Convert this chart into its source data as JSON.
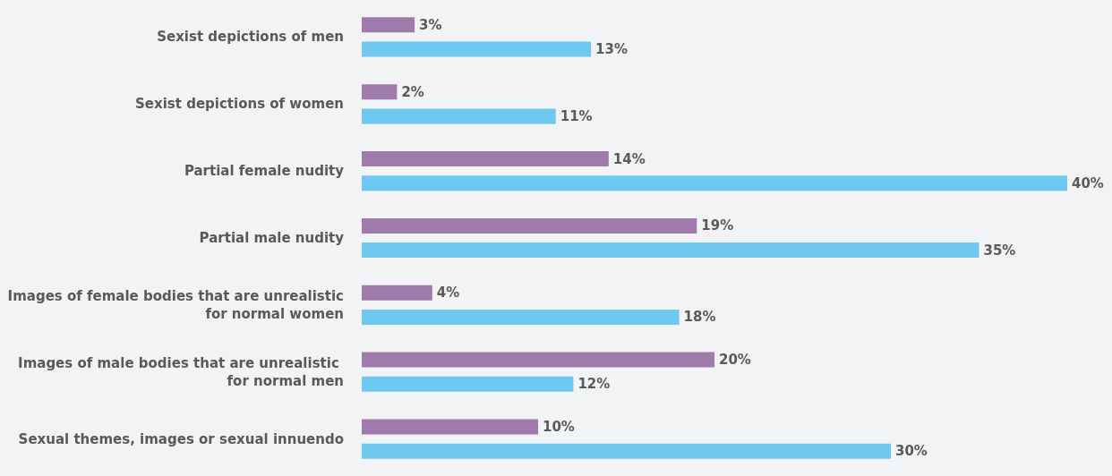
{
  "chart_data": {
    "type": "bar",
    "orientation": "horizontal",
    "categories": [
      "Sexist depictions of men",
      "Sexist depictions of women",
      "Partial female nudity",
      "Partial male nudity",
      "Images of female bodies that are unrealistic for normal women",
      "Images of male bodies that are unrealistic for normal men",
      "Sexual themes, images or sexual innuendo"
    ],
    "series": [
      {
        "color": "#9e7bab",
        "values": [
          3,
          2,
          14,
          19,
          4,
          20,
          10
        ],
        "value_labels": [
          "3%",
          "2%",
          "14%",
          "19%",
          "4%",
          "20%",
          "10%"
        ]
      },
      {
        "color": "#6ec8f0",
        "values": [
          13,
          11,
          40,
          35,
          18,
          12,
          30
        ],
        "value_labels": [
          "13%",
          "11%",
          "40%",
          "35%",
          "18%",
          "12%",
          "30%"
        ]
      }
    ]
  }
}
